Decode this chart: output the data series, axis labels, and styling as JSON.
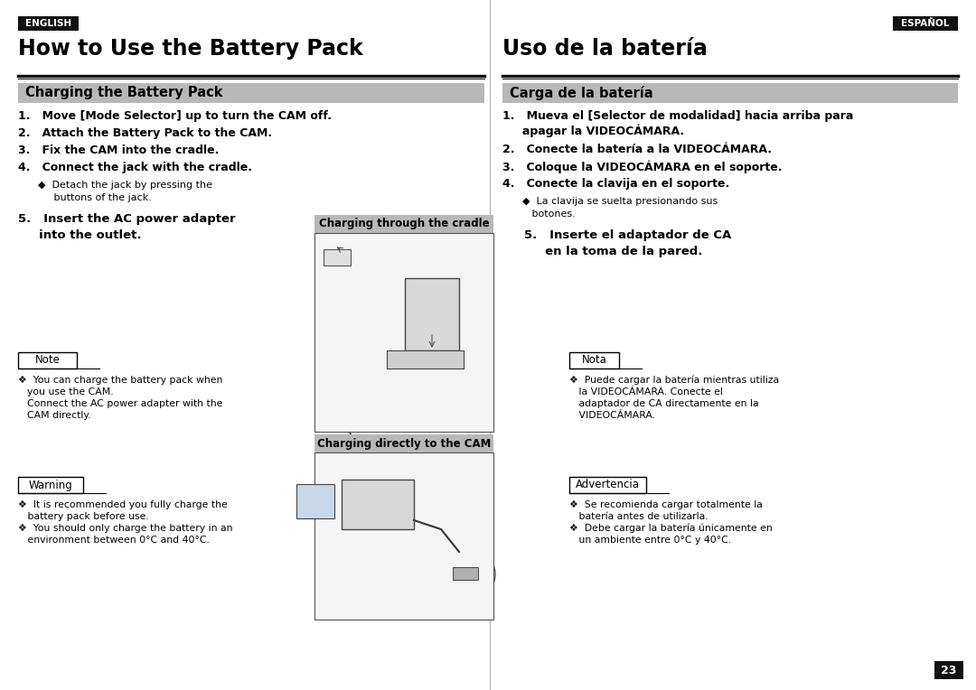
{
  "bg_color": "#ffffff",
  "english_badge": "ENGLISH",
  "espanol_badge": "ESPAÑOL",
  "title_left": "How to Use the Battery Pack",
  "title_right": "Uso de la batería",
  "section_left": "Charging the Battery Pack",
  "section_right": "Carga de la batería",
  "step1_l": "1.   Move [Mode Selector] up to turn the CAM off.",
  "step2_l": "2.   Attach the Battery Pack to the CAM.",
  "step3_l": "3.   Fix the CAM into the cradle.",
  "step4_l": "4.   Connect the jack with the cradle.",
  "step4_sub_l1": "◆  Detach the jack by pressing the",
  "step4_sub_l2": "     buttons of the jack.",
  "step5_l1": "5.   Insert the AC power adapter",
  "step5_l2": "     into the outlet.",
  "note_label": "Note",
  "note_bullet": "❖",
  "note_line1": "You can charge the battery pack when",
  "note_line2": "you use the CAM.",
  "note_line3": "Connect the AC power adapter with the",
  "note_line4": "CAM directly.",
  "warning_label": "Warning",
  "warn_line1": "❖  It is recommended you fully charge the",
  "warn_line2": "   battery pack before use.",
  "warn_line3": "❖  You should only charge the battery in an",
  "warn_line4": "   environment between 0°C and 40°C.",
  "step1_r1": "1.   Mueva el [Selector de modalidad] hacia arriba para",
  "step1_r2": "     apagar la VIDEOCÁMARA.",
  "step2_r": "2.   Conecte la batería a la VIDEOCÁMARA.",
  "step3_r": "3.   Coloque la VIDEOCÁMARA en el soporte.",
  "step4_r": "4.   Conecte la clavija en el soporte.",
  "step4_sub_r1": "◆  La clavija se suelta presionando sus",
  "step4_sub_r2": "   botones.",
  "step5_r1": "5.   Inserte el adaptador de CA",
  "step5_r2": "     en la toma de la pared.",
  "nota_label": "Nota",
  "nota_line1": "❖  Puede cargar la batería mientras utiliza",
  "nota_line2": "   la VIDEOCÁMARA. Conecte el",
  "nota_line3": "   adaptador de CA directamente en la",
  "nota_line4": "   VIDEOCÁMARA.",
  "adv_label": "Advertencia",
  "adv_line1": "❖  Se recomienda cargar totalmente la",
  "adv_line2": "   batería antes de utilizarla.",
  "adv_line3": "❖  Debe cargar la batería únicamente en",
  "adv_line4": "   un ambiente entre 0°C y 40°C.",
  "cradle_label": "Charging through the cradle",
  "cam_label": "Charging directly to the CAM",
  "page_num": "23",
  "gray_hdr": "#b8b8b8",
  "gray_img_bg": "#f5f5f5",
  "badge_bg": "#111111",
  "badge_text": "#ffffff",
  "divider_color": "#aaaaaa",
  "img_border": "#555555",
  "underline_color": "#111111"
}
